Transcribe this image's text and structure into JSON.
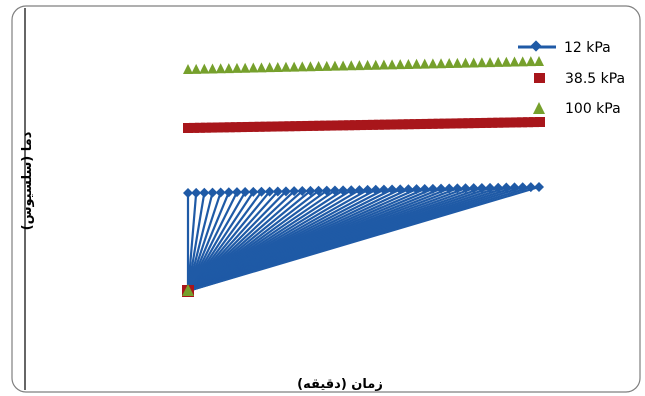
{
  "chart_data": {
    "type": "scatter",
    "xlabel": "زمان (دقیقه)",
    "ylabel": "دما (سلسیوس)",
    "grid": false,
    "legend_position": "top-right",
    "series": [
      {
        "name": "12 kPa",
        "marker": "diamond",
        "color": "#1f5aa6",
        "line": true,
        "values": []
      },
      {
        "name": "38.5 kPa",
        "marker": "square",
        "color": "#a8161b",
        "line": false,
        "values": []
      },
      {
        "name": "100 kPa",
        "marker": "triangle",
        "color": "#76a02c",
        "line": false,
        "values": []
      }
    ]
  }
}
